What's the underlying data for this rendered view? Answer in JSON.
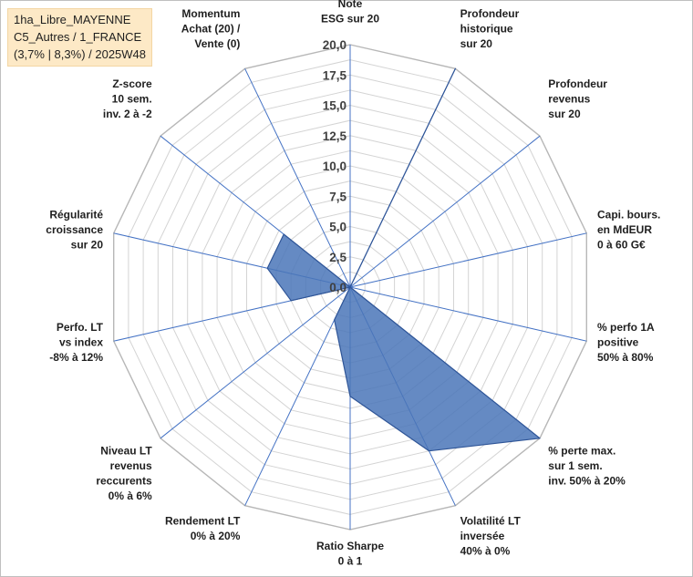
{
  "title_lines": [
    "1ha_Libre_MAYENNE",
    "C5_Autres / 1_FRANCE",
    "(3,7% | 8,3%) / 2025W48"
  ],
  "chart_data": {
    "type": "radar",
    "title": "1ha_Libre_MAYENNE C5_Autres / 1_FRANCE (3,7% | 8,3%) / 2025W48",
    "axes": [
      [
        "Note",
        "ESG sur 20"
      ],
      [
        "Profondeur",
        "historique",
        "sur 20"
      ],
      [
        "Profondeur",
        "revenus",
        "sur 20"
      ],
      [
        "Capi. bours.",
        "en MdEUR",
        "0 à 60 G€"
      ],
      [
        "% perfo 1A",
        "positive",
        "50% à 80%"
      ],
      [
        "% perte max.",
        "sur 1 sem.",
        "inv. 50% à 20%"
      ],
      [
        "Volatilité LT",
        "inversée",
        "40% à 0%"
      ],
      [
        "Ratio Sharpe",
        "0 à 1"
      ],
      [
        "Rendement LT",
        "0% à 20%"
      ],
      [
        "Niveau LT",
        "revenus",
        "reccurents",
        "0% à 6%"
      ],
      [
        "Perfo. LT",
        "vs index",
        "-8% à 12%"
      ],
      [
        "Régularité",
        "croissance",
        "sur 20"
      ],
      [
        "Z-score",
        "10 sem.",
        "inv. 2 à -2"
      ],
      [
        "Momentum",
        "Achat (20) /",
        "Vente (0)"
      ]
    ],
    "rlim": [
      0,
      20
    ],
    "ticks": [
      "0,0",
      "2,5",
      "5,0",
      "7,5",
      "10,0",
      "12,5",
      "15,0",
      "17,5",
      "20,0"
    ],
    "series": [
      {
        "values": [
          0,
          20,
          0,
          0,
          0,
          20,
          15,
          9,
          3,
          0,
          5,
          7,
          7,
          0
        ],
        "color": "#4a76b8"
      }
    ],
    "grid": true,
    "legend": "none"
  }
}
